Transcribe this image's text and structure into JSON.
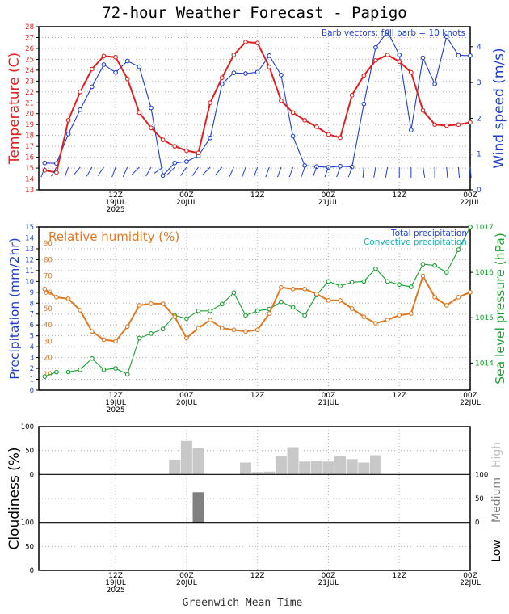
{
  "title": "72-hour Weather Forecast - Papigo",
  "footer_label": "Greenwich Mean Time",
  "x_axis": {
    "ticks": [
      {
        "hours": 12,
        "lines": [
          "12Z",
          "19JUL",
          "2025"
        ]
      },
      {
        "hours": 24,
        "lines": [
          "00Z",
          "20JUL"
        ]
      },
      {
        "hours": 36,
        "lines": [
          "12Z"
        ]
      },
      {
        "hours": 48,
        "lines": [
          "00Z",
          "21JUL"
        ]
      },
      {
        "hours": 60,
        "lines": [
          "12Z"
        ]
      },
      {
        "hours": 72,
        "lines": [
          "00Z",
          "22JUL"
        ]
      }
    ],
    "range_hours": [
      -1,
      72
    ]
  },
  "colors": {
    "temperature": "#e02020",
    "wind": "#1f3fd0",
    "humidity": "#e07820",
    "pressure": "#18a030",
    "precip_total": "#1f3fd0",
    "precip_convective": "#18b0b0",
    "cloud_high": "#c8c8c8",
    "cloud_medium": "#808080",
    "cloud_low": "#303030",
    "grid": "#b0b0b0"
  },
  "chart_data": [
    {
      "type": "line",
      "panel": "temperature-wind",
      "left_axis_label": "Temperature (C)",
      "right_axis_label": "Wind speed (m/s)",
      "annotation": "Barb vectors: full barb = 10 knots",
      "left_ylim": [
        13,
        28
      ],
      "left_ticks": [
        "13",
        "14",
        "15",
        "16",
        "17",
        "18",
        "19",
        "20",
        "21",
        "22",
        "23",
        "24",
        "25",
        "26",
        "27",
        "28"
      ],
      "right_ylim": [
        0,
        4.56
      ],
      "right_ticks": [
        "0",
        "1",
        "2",
        "3",
        "4"
      ],
      "series": [
        {
          "axis": "left",
          "x": [
            0,
            2,
            4,
            6,
            8,
            10,
            12,
            14,
            16,
            18,
            20,
            22,
            24,
            26,
            28,
            30,
            32,
            34,
            36,
            38,
            40,
            42,
            44,
            46,
            48,
            50,
            52,
            54,
            56,
            58,
            60,
            62,
            64,
            66,
            68,
            70,
            72
          ],
          "values": [
            14.8,
            14.6,
            19.4,
            22.0,
            24.1,
            25.3,
            25.2,
            23.2,
            20.1,
            18.7,
            17.6,
            17.0,
            16.6,
            16.4,
            21.0,
            23.3,
            25.4,
            26.6,
            26.5,
            24.3,
            21.2,
            20.1,
            19.4,
            18.8,
            18.1,
            17.8,
            21.7,
            23.5,
            24.9,
            25.4,
            24.8,
            23.8,
            20.3,
            19.0,
            18.9,
            19.0,
            19.2
          ]
        },
        {
          "axis": "right",
          "x": [
            0,
            2,
            4,
            6,
            8,
            10,
            12,
            14,
            16,
            18,
            20,
            22,
            24,
            26,
            28,
            30,
            32,
            34,
            36,
            38,
            40,
            42,
            44,
            46,
            48,
            50,
            52,
            54,
            56,
            58,
            60,
            62,
            64,
            66,
            68,
            70,
            72
          ],
          "values": [
            0.75,
            0.74,
            1.56,
            2.24,
            2.88,
            3.5,
            3.28,
            3.6,
            3.44,
            2.29,
            0.4,
            0.75,
            0.79,
            0.95,
            1.45,
            2.96,
            3.27,
            3.25,
            3.29,
            3.75,
            3.21,
            1.5,
            0.68,
            0.65,
            0.63,
            0.66,
            0.64,
            2.4,
            3.98,
            4.42,
            3.77,
            1.67,
            3.69,
            2.96,
            4.28,
            3.76,
            3.75
          ]
        }
      ],
      "wind_barb_directions_deg": [
        200,
        210,
        200,
        220,
        210,
        215,
        200,
        205,
        225,
        210,
        235,
        225,
        215,
        215,
        225,
        220,
        205,
        200,
        200,
        200,
        200,
        200,
        200,
        200,
        200,
        200,
        200,
        185,
        190,
        190,
        180,
        180,
        170,
        180,
        175,
        175,
        175
      ]
    },
    {
      "type": "line",
      "panel": "humidity-precip-pressure",
      "left_axis_label": "Precipitation (mm/2hr)",
      "right_axis_label": "Sea level pressure (hPa)",
      "humidity_label": "Relative humidity (%)",
      "legend": [
        "Total precipitation",
        "Convective precipitation"
      ],
      "left_ylim": [
        0,
        15
      ],
      "left_ticks": [
        "0",
        "1",
        "2",
        "3",
        "4",
        "5",
        "6",
        "7",
        "8",
        "9",
        "10",
        "11",
        "12",
        "13",
        "14",
        "15"
      ],
      "humidity_ticks": [
        "10",
        "20",
        "30",
        "40",
        "50",
        "60",
        "70",
        "80",
        "90"
      ],
      "humidity_ylim": [
        0,
        100
      ],
      "right_ylim": [
        1013.4,
        1017
      ],
      "right_ticks": [
        "1014",
        "1015",
        "1016",
        "1017"
      ],
      "series": [
        {
          "name": "Relative humidity (%)",
          "x": [
            0,
            2,
            4,
            6,
            8,
            10,
            12,
            14,
            16,
            18,
            20,
            22,
            24,
            26,
            28,
            30,
            32,
            34,
            36,
            38,
            40,
            42,
            44,
            46,
            48,
            50,
            52,
            54,
            56,
            58,
            60,
            62,
            64,
            66,
            68,
            70,
            72
          ],
          "values": [
            62,
            57,
            56,
            49,
            36,
            31,
            30,
            39,
            52,
            53,
            53,
            45,
            32,
            38,
            43,
            38,
            37,
            36,
            37,
            47,
            63,
            62,
            62,
            59,
            55,
            55,
            50,
            45,
            41,
            43,
            46,
            47,
            70,
            57,
            52,
            57,
            60
          ]
        },
        {
          "name": "Sea level pressure (hPa)",
          "x": [
            0,
            2,
            4,
            6,
            8,
            10,
            12,
            14,
            16,
            18,
            20,
            22,
            24,
            26,
            28,
            30,
            32,
            34,
            36,
            38,
            40,
            42,
            44,
            46,
            48,
            50,
            52,
            54,
            56,
            58,
            60,
            62,
            64,
            66,
            68,
            70,
            72
          ],
          "values": [
            1013.7,
            1013.8,
            1013.8,
            1013.85,
            1014.1,
            1013.85,
            1013.88,
            1013.75,
            1014.55,
            1014.65,
            1014.75,
            1015.05,
            1014.98,
            1015.15,
            1015.15,
            1015.3,
            1015.55,
            1015.05,
            1015.15,
            1015.19,
            1015.35,
            1015.23,
            1015.05,
            1015.5,
            1015.8,
            1015.7,
            1015.78,
            1015.8,
            1016.08,
            1015.8,
            1015.73,
            1015.68,
            1016.18,
            1016.15,
            1016.0,
            1016.5,
            1017.0
          ]
        }
      ]
    },
    {
      "type": "bar",
      "panel": "cloudiness",
      "axis_label": "Cloudiness (%)",
      "layers": [
        "High",
        "Medium",
        "Low"
      ],
      "layer_ticks": [
        "0",
        "50",
        "100"
      ],
      "ylim": [
        0,
        100
      ],
      "series": [
        {
          "name": "High",
          "x": [
            22,
            24,
            26,
            34,
            36,
            38,
            40,
            42,
            44,
            46,
            48,
            50,
            52,
            54,
            56,
            58
          ],
          "values": [
            31,
            70,
            55,
            25,
            5,
            6,
            38,
            57,
            27,
            29,
            27,
            38,
            32,
            25,
            40,
            0
          ]
        },
        {
          "name": "Medium",
          "x": [
            26
          ],
          "values": [
            63
          ]
        },
        {
          "name": "Low",
          "x": [],
          "values": []
        }
      ]
    }
  ]
}
